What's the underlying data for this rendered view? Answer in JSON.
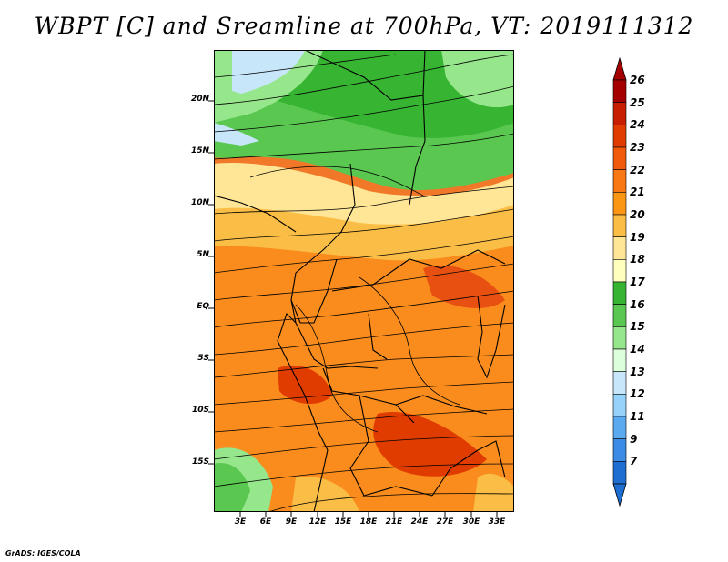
{
  "title": "WBPT [C] and Sreamline at 700hPa, VT: 2019111312",
  "credit": "GrADS: IGES/COLA",
  "axes": {
    "lat_labels": [
      "20N",
      "15N",
      "10N",
      "5N",
      "EQ",
      "5S",
      "10S",
      "15S"
    ],
    "lon_labels": [
      "3E",
      "6E",
      "9E",
      "12E",
      "15E",
      "18E",
      "21E",
      "24E",
      "27E",
      "30E",
      "33E"
    ]
  },
  "colorbar": {
    "labels": [
      "26",
      "25",
      "24",
      "23",
      "22",
      "21",
      "20",
      "19",
      "18",
      "17",
      "16",
      "15",
      "14",
      "13",
      "12",
      "11",
      "9",
      "7"
    ],
    "colors": [
      "#a50000",
      "#c81e00",
      "#e13c00",
      "#f05a0a",
      "#fa7814",
      "#fa9614",
      "#fabe46",
      "#ffe696",
      "#ffffbe",
      "#37b432",
      "#5ac850",
      "#96e68c",
      "#dcffdc",
      "#c8e6fa",
      "#96d2fa",
      "#5aaaf0",
      "#3c8ce6",
      "#1e6ed2"
    ]
  },
  "colors": {
    "warm_max": "#e13c00",
    "warm": "#f07828",
    "mild": "#fabe46",
    "pale": "#ffe696",
    "green": "#5ac850",
    "light_green": "#96e68c",
    "light_blue": "#96d2fa"
  }
}
